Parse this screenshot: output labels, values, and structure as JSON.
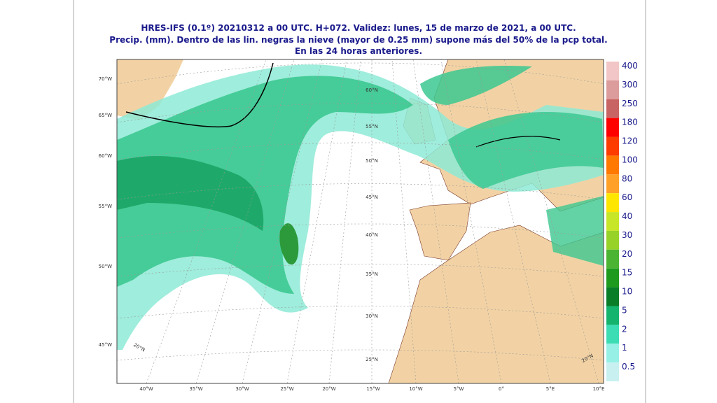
{
  "header": {
    "lines": [
      "HRES-IFS (0.1º) 20210312 a 00 UTC.  H+072. Validez: lunes, 15 de marzo de 2021,  a 00 UTC.",
      "Precip. (mm). Dentro de las lin. negras la nieve (mayor de 0.25 mm) supone más del 50% de la pcp total.",
      "En las 24 horas anteriores."
    ]
  },
  "map": {
    "left_labels": [
      "70°W",
      "65°W",
      "60°W",
      "55°W",
      "50°W",
      "45°W"
    ],
    "bottom_labels": [
      "40°W",
      "35°W",
      "30°W",
      "25°W",
      "20°W",
      "15°W",
      "10°W",
      "5°W",
      "0°",
      "5°E",
      "10°E"
    ],
    "lat_labels": [
      "60°N",
      "55°N",
      "50°N",
      "45°N",
      "40°N",
      "35°N",
      "30°N",
      "25°N"
    ],
    "corner_labels": [
      "20°N",
      "20°N"
    ]
  },
  "colorbar": [
    {
      "label": "400",
      "color": "#f2c6c6"
    },
    {
      "label": "300",
      "color": "#dc9c9c"
    },
    {
      "label": "250",
      "color": "#c86464"
    },
    {
      "label": "180",
      "color": "#ff0000"
    },
    {
      "label": "120",
      "color": "#ff3c00"
    },
    {
      "label": "100",
      "color": "#ff7800"
    },
    {
      "label": "80",
      "color": "#ffa028"
    },
    {
      "label": "60",
      "color": "#ffe600"
    },
    {
      "label": "40",
      "color": "#c8e628"
    },
    {
      "label": "30",
      "color": "#96d228"
    },
    {
      "label": "20",
      "color": "#4bb432"
    },
    {
      "label": "15",
      "color": "#1e9b1e"
    },
    {
      "label": "10",
      "color": "#0a7d28"
    },
    {
      "label": "5",
      "color": "#14b46e"
    },
    {
      "label": "2",
      "color": "#3cdcb4"
    },
    {
      "label": "1",
      "color": "#96f0e6"
    },
    {
      "label": "0.5",
      "color": "#c8f0f0"
    }
  ]
}
